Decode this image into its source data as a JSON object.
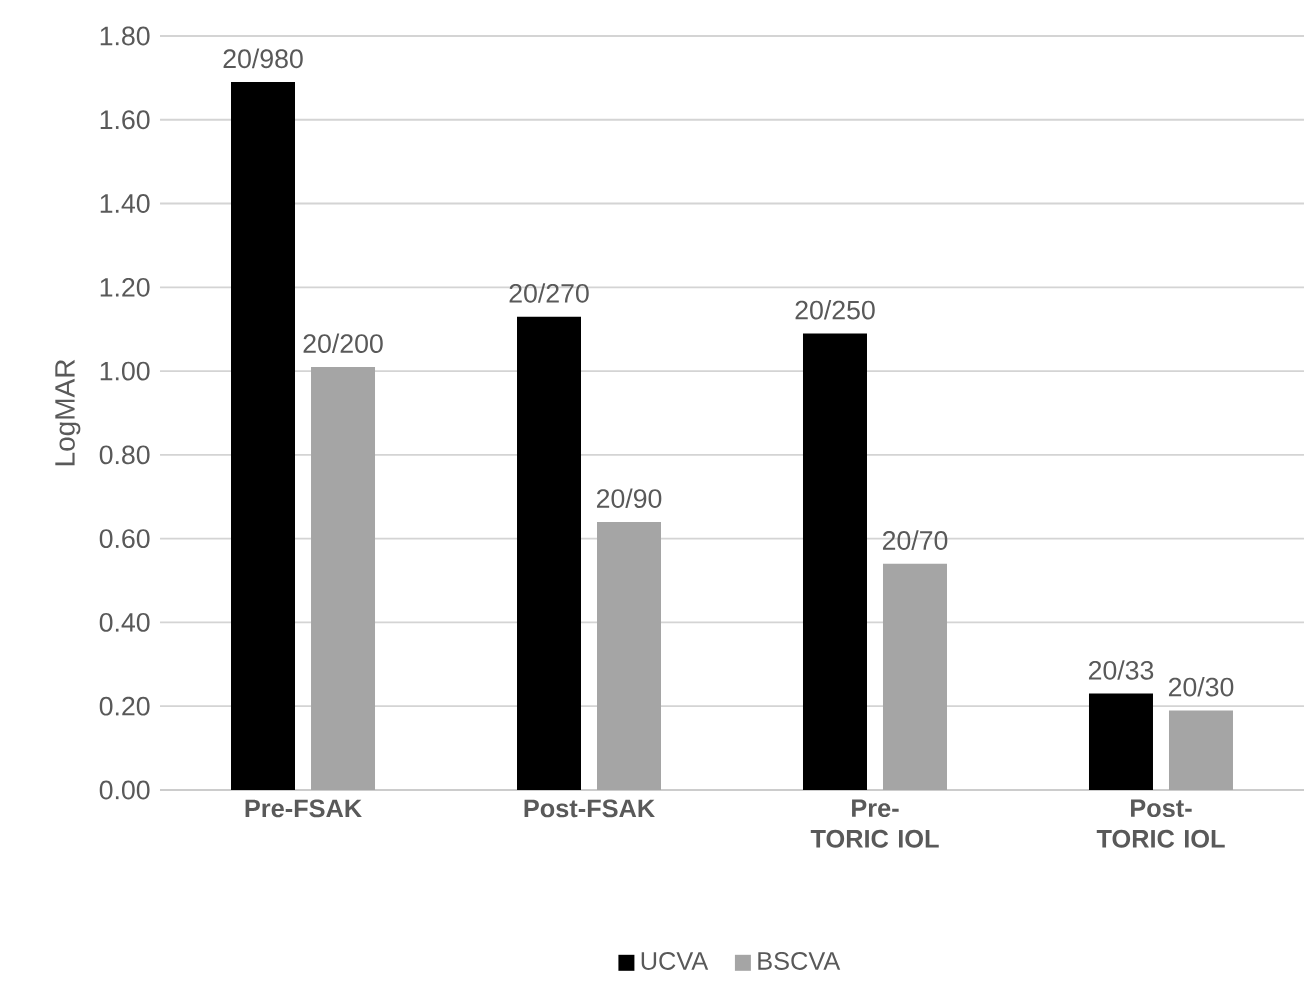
{
  "chart_data": {
    "type": "bar",
    "ylabel": "LogMAR",
    "categories": [
      "Pre-FSAK",
      "Post-FSAK",
      "Pre- TORIC IOL",
      "Post- TORIC IOL"
    ],
    "series": [
      {
        "name": "UCVA",
        "color": "#000000",
        "values": [
          1.69,
          1.13,
          1.09,
          0.23
        ],
        "value_labels": [
          "20/980",
          "20/270",
          "20/250",
          "20/33"
        ]
      },
      {
        "name": "BSCVA",
        "color": "#a5a5a5",
        "values": [
          1.01,
          0.64,
          0.54,
          0.19
        ],
        "value_labels": [
          "20/200",
          "20/90",
          "20/70",
          "20/30"
        ]
      }
    ],
    "ylim": [
      0,
      1.8
    ],
    "yticks": [
      {
        "value": 0,
        "label": "0.00"
      },
      {
        "value": 0.2,
        "label": "0.20"
      },
      {
        "value": 0.4,
        "label": "0.40"
      },
      {
        "value": 0.6,
        "label": "0.60"
      },
      {
        "value": 0.8,
        "label": "0.80"
      },
      {
        "value": 1.0,
        "label": "1.00"
      },
      {
        "value": 1.2,
        "label": "1.20"
      },
      {
        "value": 1.4,
        "label": "1.40"
      },
      {
        "value": 1.6,
        "label": "1.60"
      },
      {
        "value": 1.8,
        "label": "1.80"
      }
    ],
    "grid": "y",
    "legend": "bottom"
  }
}
